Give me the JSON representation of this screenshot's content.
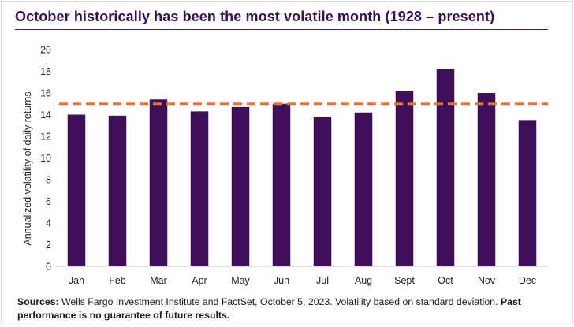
{
  "title": "October historically has been the most volatile month (1928 – present)",
  "footer": {
    "sources_label": "Sources:",
    "sources_text": "Wells Fargo Investment Institute and FactSet, October 5, 2023. Volatility based on standard deviation.",
    "disclaimer": "Past performance is no guarantee of future results."
  },
  "colors": {
    "bar": "#3f0f59",
    "reference_line": "#e9722f",
    "title": "#3b0d57"
  },
  "chart_data": {
    "type": "bar",
    "title": "October historically has been the most volatile month (1928 – present)",
    "xlabel": "",
    "ylabel": "Annualized volatility of daily returns",
    "categories": [
      "Jan",
      "Feb",
      "Mar",
      "Apr",
      "May",
      "Jun",
      "Jul",
      "Aug",
      "Sept",
      "Oct",
      "Nov",
      "Dec"
    ],
    "values": [
      14.0,
      13.9,
      15.4,
      14.3,
      14.7,
      15.0,
      13.8,
      14.2,
      16.2,
      18.2,
      16.0,
      13.5
    ],
    "reference_line": {
      "value": 15,
      "style": "dashed"
    },
    "ylim": [
      0,
      20
    ],
    "yticks": [
      0,
      2,
      4,
      6,
      8,
      10,
      12,
      14,
      16,
      18,
      20
    ],
    "grid": false,
    "legend": "none"
  }
}
